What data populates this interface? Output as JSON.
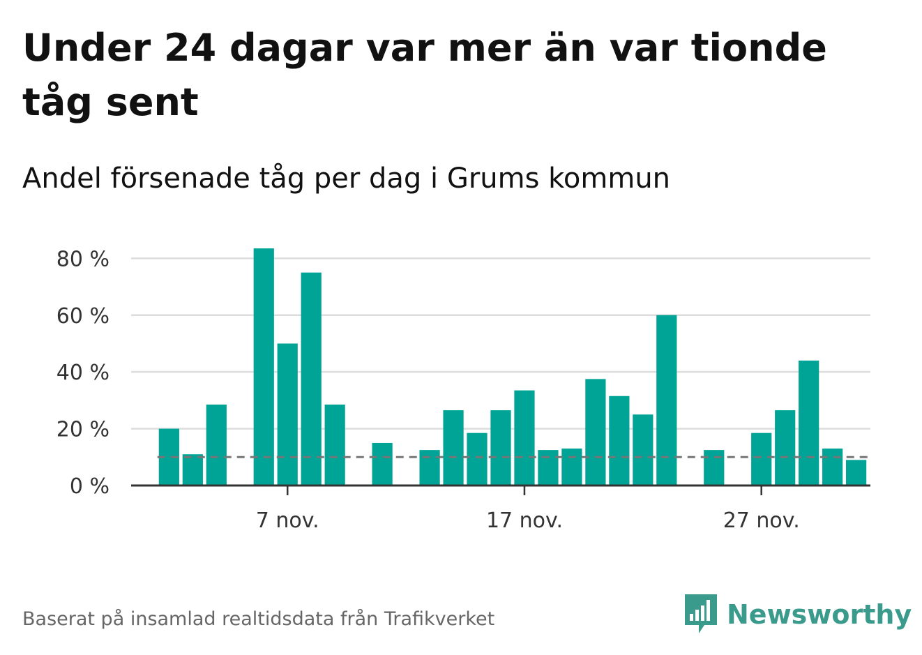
{
  "title": "Under 24 dagar var mer än var tionde tåg sent",
  "subtitle": "Andel försenade tåg per dag i Grums kommun",
  "source": "Baserat på insamlad realtidsdata från Trafikverket",
  "brand": {
    "name": "Newsworthy",
    "color": "#3a9a8c",
    "icon": "newsworthy-logo-icon"
  },
  "colors": {
    "bar": "#00a497",
    "grid": "#dddddd",
    "axis": "#333333",
    "reference": "#777777"
  },
  "chart_data": {
    "type": "bar",
    "x": [
      "2 nov.",
      "3 nov.",
      "4 nov.",
      "5 nov.",
      "6 nov.",
      "7 nov.",
      "8 nov.",
      "9 nov.",
      "10 nov.",
      "11 nov.",
      "12 nov.",
      "13 nov.",
      "14 nov.",
      "15 nov.",
      "16 nov.",
      "17 nov.",
      "18 nov.",
      "19 nov.",
      "20 nov.",
      "21 nov.",
      "22 nov.",
      "23 nov.",
      "24 nov.",
      "25 nov.",
      "26 nov.",
      "27 nov.",
      "28 nov.",
      "29 nov.",
      "30 nov.",
      "1 dec."
    ],
    "values": [
      20,
      11,
      28.5,
      null,
      83.5,
      50,
      75,
      28.5,
      null,
      15,
      null,
      12.5,
      26.5,
      18.5,
      26.5,
      33.5,
      12.5,
      13,
      37.5,
      31.5,
      25,
      60,
      null,
      12.5,
      null,
      18.5,
      26.5,
      44,
      13,
      9
    ],
    "yticks": [
      0,
      20,
      40,
      60,
      80
    ],
    "ytick_labels": [
      "0 %",
      "20 %",
      "40 %",
      "60 %",
      "80 %"
    ],
    "xticks": [
      "7 nov.",
      "17 nov.",
      "27 nov."
    ],
    "ylim": [
      0,
      85
    ],
    "reference_line": 10,
    "grid": true,
    "legend": "none"
  }
}
